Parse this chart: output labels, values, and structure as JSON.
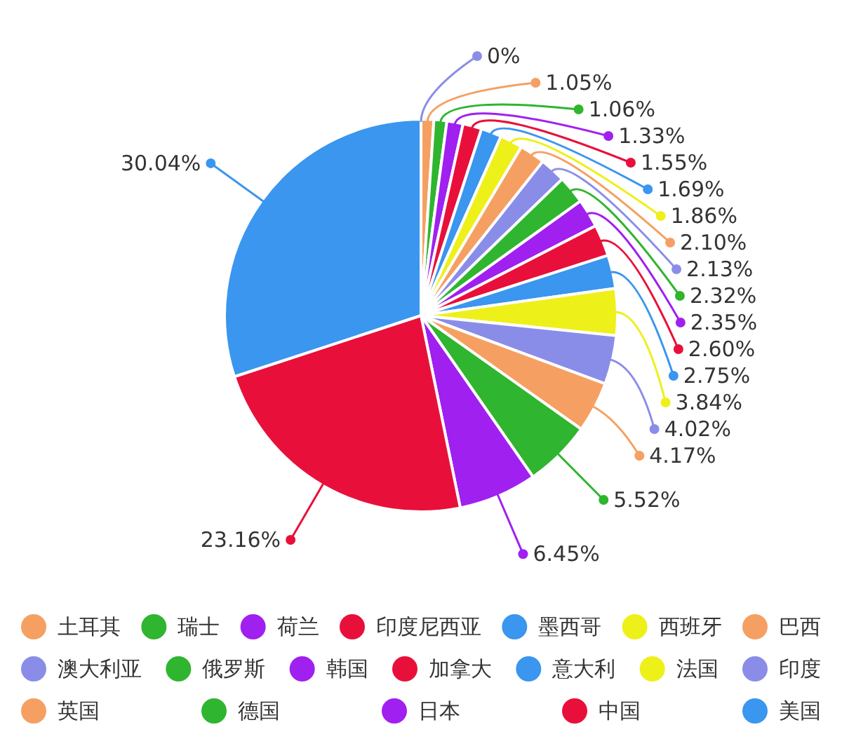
{
  "chart_data": {
    "type": "pie",
    "categories": [
      null,
      "土耳其",
      "瑞士",
      "荷兰",
      "印度尼西亚",
      "墨西哥",
      "西班牙",
      "巴西",
      "澳大利亚",
      "俄罗斯",
      "韩国",
      "加拿大",
      "意大利",
      "法国",
      "印度",
      "英国",
      "德国",
      "日本",
      "中国",
      "美国"
    ],
    "values": [
      0,
      1.05,
      1.06,
      1.33,
      1.55,
      1.69,
      1.86,
      2.1,
      2.13,
      2.32,
      2.35,
      2.6,
      2.75,
      3.84,
      4.02,
      4.17,
      5.52,
      6.45,
      23.16,
      30.04
    ],
    "value_labels": [
      "0%",
      "1.05%",
      "1.06%",
      "1.33%",
      "1.55%",
      "1.69%",
      "1.86%",
      "2.10%",
      "2.13%",
      "2.32%",
      "2.35%",
      "2.60%",
      "2.75%",
      "3.84%",
      "4.02%",
      "4.17%",
      "5.52%",
      "6.45%",
      "23.16%",
      "30.04%"
    ],
    "colors": [
      "#8a8de8",
      "#f5a062",
      "#2fb52f",
      "#a020f0",
      "#e8103a",
      "#3a96ee",
      "#eef01a",
      "#f5a062",
      "#8a8de8",
      "#2fb52f",
      "#a020f0",
      "#e8103a",
      "#3a96ee",
      "#eef01a",
      "#8a8de8",
      "#f5a062",
      "#2fb52f",
      "#a020f0",
      "#e8103a",
      "#3a96ee"
    ],
    "legend": "bottom"
  }
}
